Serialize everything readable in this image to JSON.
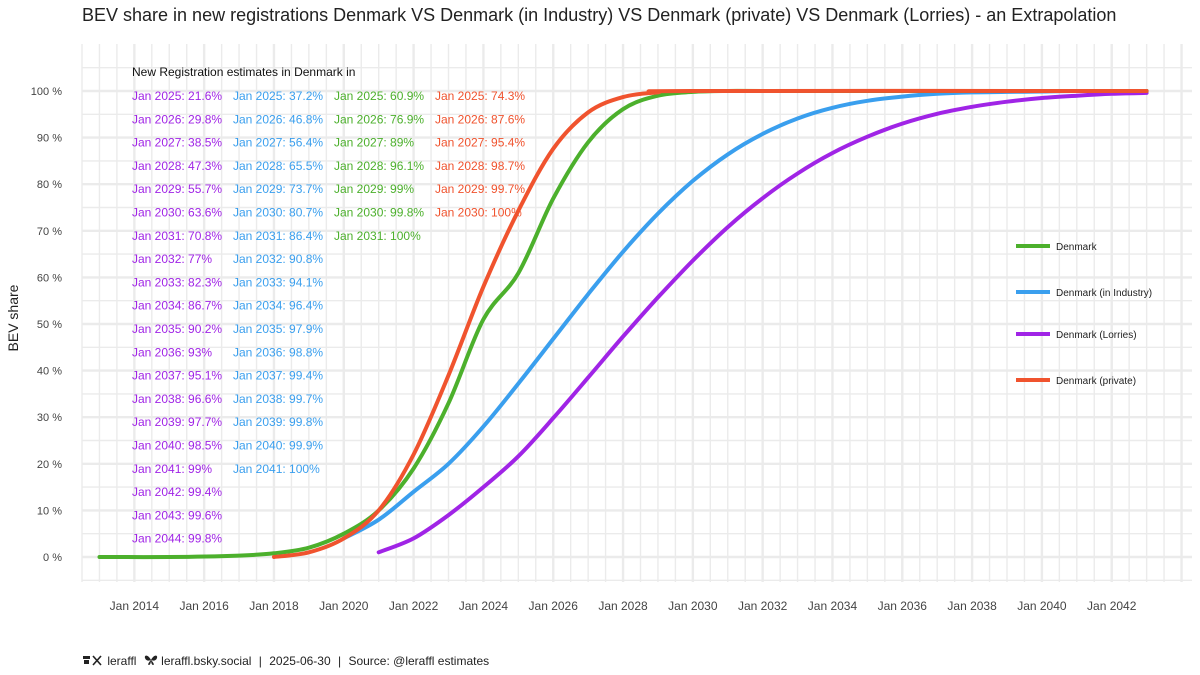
{
  "title": "BEV share in new registrations Denmark VS Denmark (in Industry) VS Denmark (private) VS Denmark (Lorries) - an Extrapolation",
  "footer": {
    "handle_x": "leraffl",
    "handle_bsky": "leraffl.bsky.social",
    "sep": "|",
    "date": "2025-06-30",
    "source": "Source: @leraffl estimates"
  },
  "chart_data": {
    "type": "line",
    "ylabel": "BEV share",
    "ylim": [
      0,
      100
    ],
    "yticks": [
      "0 %",
      "10 %",
      "20 %",
      "30 %",
      "40 %",
      "50 %",
      "60 %",
      "70 %",
      "80 %",
      "90 %",
      "100 %"
    ],
    "xlim": [
      2012.5,
      2044.3
    ],
    "xticks": [
      "Jan 2014",
      "Jan 2016",
      "Jan 2018",
      "Jan 2020",
      "Jan 2022",
      "Jan 2024",
      "Jan 2026",
      "Jan 2028",
      "Jan 2030",
      "Jan 2032",
      "Jan 2034",
      "Jan 2036",
      "Jan 2038",
      "Jan 2040",
      "Jan 2042"
    ],
    "xtick_years": [
      2014,
      2016,
      2018,
      2020,
      2022,
      2024,
      2026,
      2028,
      2030,
      2032,
      2034,
      2036,
      2038,
      2040,
      2042
    ],
    "legend_position": "right",
    "grid": true,
    "series": [
      {
        "name": "Denmark",
        "color": "#4CB02C",
        "x": [
          2013.0,
          2015,
          2017,
          2018,
          2019,
          2020,
          2021,
          2022,
          2023,
          2024,
          2025,
          2026,
          2027,
          2028,
          2029,
          2030,
          2031,
          2033,
          2043.0
        ],
        "y": [
          0,
          0,
          0.3,
          0.8,
          2,
          5,
          10,
          19,
          33,
          51,
          60.9,
          76.9,
          89,
          96.1,
          99,
          99.8,
          100,
          100,
          100
        ]
      },
      {
        "name": "Denmark (in Industry)",
        "color": "#3A9FEE",
        "x": [
          2020.0,
          2021,
          2022,
          2023,
          2024,
          2025,
          2026,
          2027,
          2028,
          2029,
          2030,
          2031,
          2032,
          2033,
          2034,
          2035,
          2036,
          2037,
          2038,
          2039,
          2040,
          2041,
          2043.0
        ],
        "y": [
          4,
          8,
          14,
          20,
          28,
          37.2,
          46.8,
          56.4,
          65.5,
          73.7,
          80.7,
          86.4,
          90.8,
          94.1,
          96.4,
          97.9,
          98.8,
          99.4,
          99.7,
          99.8,
          99.9,
          100,
          100
        ]
      },
      {
        "name": "Denmark (Lorries)",
        "color": "#A024E6",
        "x": [
          2021.0,
          2022,
          2023,
          2024,
          2025,
          2026,
          2027,
          2028,
          2029,
          2030,
          2031,
          2032,
          2033,
          2034,
          2035,
          2036,
          2037,
          2038,
          2039,
          2040,
          2041,
          2042,
          2043.0
        ],
        "y": [
          1,
          4,
          9,
          15,
          21.6,
          29.8,
          38.5,
          47.3,
          55.7,
          63.6,
          70.8,
          77,
          82.3,
          86.7,
          90.2,
          93,
          95.1,
          96.6,
          97.7,
          98.5,
          99,
          99.4,
          99.6
        ]
      },
      {
        "name": "Denmark (private)",
        "color": "#F0532E",
        "x": [
          2018.0,
          2019,
          2020,
          2021,
          2022,
          2023,
          2024,
          2025,
          2026,
          2027,
          2028,
          2029,
          2030,
          2043.0
        ],
        "y": [
          0,
          1,
          4,
          10,
          22,
          39,
          58,
          74.3,
          87.6,
          95.4,
          98.7,
          99.7,
          100,
          100
        ]
      }
    ],
    "annotations": {
      "header": "New Registration estimates in Denmark in",
      "columns": [
        {
          "color": "#A024E6",
          "lines": [
            "Jan 2025: 21.6%",
            "Jan 2026: 29.8%",
            "Jan 2027: 38.5%",
            "Jan 2028: 47.3%",
            "Jan 2029: 55.7%",
            "Jan 2030: 63.6%",
            "Jan 2031: 70.8%",
            "Jan 2032: 77%",
            "Jan 2033: 82.3%",
            "Jan 2034: 86.7%",
            "Jan 2035: 90.2%",
            "Jan 2036: 93%",
            "Jan 2037: 95.1%",
            "Jan 2038: 96.6%",
            "Jan 2039: 97.7%",
            "Jan 2040: 98.5%",
            "Jan 2041: 99%",
            "Jan 2042: 99.4%",
            "Jan 2043: 99.6%",
            "Jan 2044: 99.8%"
          ]
        },
        {
          "color": "#3A9FEE",
          "lines": [
            "Jan 2025: 37.2%",
            "Jan 2026: 46.8%",
            "Jan 2027: 56.4%",
            "Jan 2028: 65.5%",
            "Jan 2029: 73.7%",
            "Jan 2030: 80.7%",
            "Jan 2031: 86.4%",
            "Jan 2032: 90.8%",
            "Jan 2033: 94.1%",
            "Jan 2034: 96.4%",
            "Jan 2035: 97.9%",
            "Jan 2036: 98.8%",
            "Jan 2037: 99.4%",
            "Jan 2038: 99.7%",
            "Jan 2039: 99.8%",
            "Jan 2040: 99.9%",
            "Jan 2041: 100%"
          ]
        },
        {
          "color": "#4CB02C",
          "lines": [
            "Jan 2025: 60.9%",
            "Jan 2026: 76.9%",
            "Jan 2027: 89%",
            "Jan 2028: 96.1%",
            "Jan 2029: 99%",
            "Jan 2030: 99.8%",
            "Jan 2031: 100%"
          ]
        },
        {
          "color": "#F0532E",
          "lines": [
            "Jan 2025: 74.3%",
            "Jan 2026: 87.6%",
            "Jan 2027: 95.4%",
            "Jan 2028: 98.7%",
            "Jan 2029: 99.7%",
            "Jan 2030: 100%"
          ]
        }
      ]
    }
  }
}
